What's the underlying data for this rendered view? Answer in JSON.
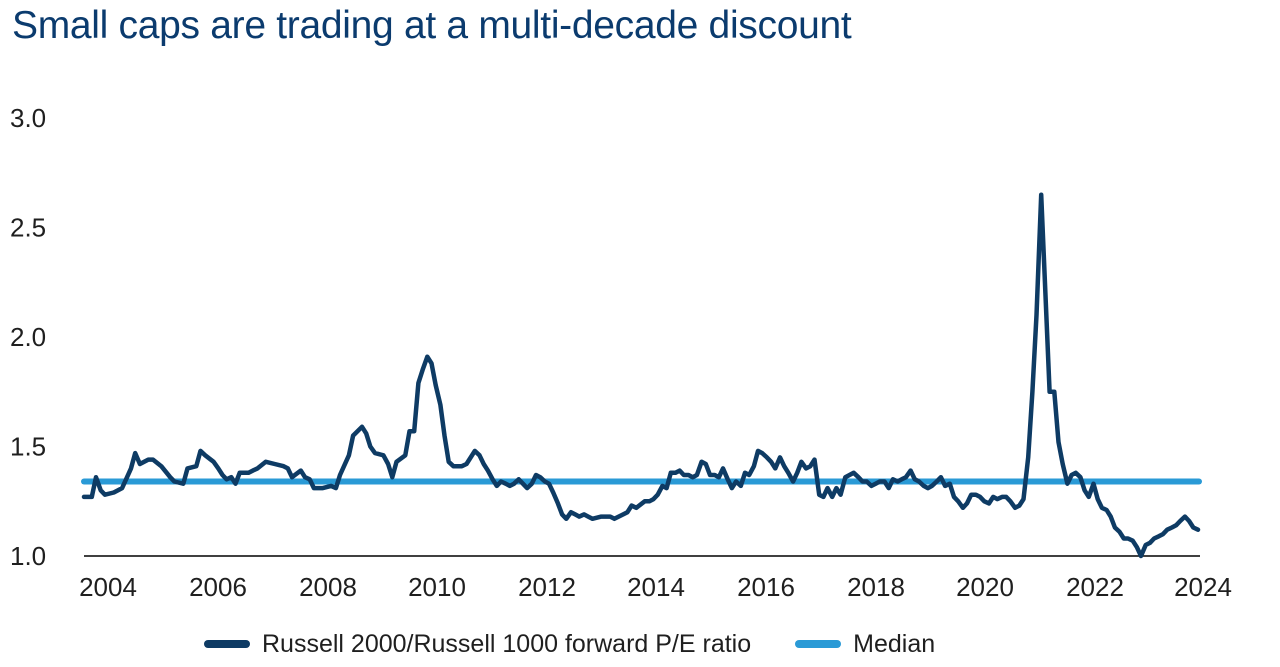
{
  "title": "Small caps are trading at a multi-decade discount",
  "chart_data": {
    "type": "line",
    "title": "Small caps are trading at a multi-decade discount",
    "xlabel": "",
    "ylabel": "",
    "xlim": [
      2003.6,
      2024.0
    ],
    "ylim": [
      1.0,
      3.0
    ],
    "x_ticks": [
      "2004",
      "2006",
      "2008",
      "2010",
      "2012",
      "2014",
      "2016",
      "2018",
      "2020",
      "2022",
      "2024"
    ],
    "y_ticks": [
      "1.0",
      "1.5",
      "2.0",
      "2.5",
      "3.0"
    ],
    "grid": false,
    "legend_position": "bottom",
    "series": [
      {
        "name": "Russell 2000/Russell 1000 forward P/E ratio",
        "color": "#0e3b64",
        "points": [
          [
            2003.6,
            1.27
          ],
          [
            2003.75,
            1.27
          ],
          [
            2003.83,
            1.36
          ],
          [
            2003.92,
            1.3
          ],
          [
            2004.0,
            1.28
          ],
          [
            2004.17,
            1.29
          ],
          [
            2004.33,
            1.31
          ],
          [
            2004.5,
            1.4
          ],
          [
            2004.58,
            1.47
          ],
          [
            2004.67,
            1.42
          ],
          [
            2004.83,
            1.44
          ],
          [
            2004.92,
            1.44
          ],
          [
            2005.08,
            1.41
          ],
          [
            2005.25,
            1.36
          ],
          [
            2005.33,
            1.34
          ],
          [
            2005.5,
            1.33
          ],
          [
            2005.58,
            1.4
          ],
          [
            2005.75,
            1.41
          ],
          [
            2005.83,
            1.48
          ],
          [
            2005.92,
            1.46
          ],
          [
            2006.08,
            1.43
          ],
          [
            2006.17,
            1.4
          ],
          [
            2006.25,
            1.37
          ],
          [
            2006.33,
            1.35
          ],
          [
            2006.42,
            1.36
          ],
          [
            2006.5,
            1.33
          ],
          [
            2006.58,
            1.38
          ],
          [
            2006.75,
            1.38
          ],
          [
            2006.83,
            1.39
          ],
          [
            2006.92,
            1.4
          ],
          [
            2007.08,
            1.43
          ],
          [
            2007.25,
            1.42
          ],
          [
            2007.42,
            1.41
          ],
          [
            2007.5,
            1.4
          ],
          [
            2007.58,
            1.36
          ],
          [
            2007.75,
            1.39
          ],
          [
            2007.83,
            1.36
          ],
          [
            2007.92,
            1.35
          ],
          [
            2008.0,
            1.31
          ],
          [
            2008.17,
            1.31
          ],
          [
            2008.33,
            1.32
          ],
          [
            2008.42,
            1.31
          ],
          [
            2008.5,
            1.37
          ],
          [
            2008.67,
            1.46
          ],
          [
            2008.75,
            1.55
          ],
          [
            2008.92,
            1.59
          ],
          [
            2009.0,
            1.56
          ],
          [
            2009.08,
            1.5
          ],
          [
            2009.17,
            1.47
          ],
          [
            2009.33,
            1.46
          ],
          [
            2009.42,
            1.42
          ],
          [
            2009.5,
            1.36
          ],
          [
            2009.58,
            1.43
          ],
          [
            2009.75,
            1.46
          ],
          [
            2009.83,
            1.57
          ],
          [
            2009.92,
            1.57
          ],
          [
            2010.0,
            1.79
          ],
          [
            2010.08,
            1.85
          ],
          [
            2010.17,
            1.91
          ],
          [
            2010.25,
            1.88
          ],
          [
            2010.33,
            1.78
          ],
          [
            2010.42,
            1.69
          ],
          [
            2010.5,
            1.55
          ],
          [
            2010.58,
            1.43
          ],
          [
            2010.67,
            1.41
          ],
          [
            2010.75,
            1.41
          ],
          [
            2010.83,
            1.41
          ],
          [
            2010.92,
            1.42
          ],
          [
            2011.08,
            1.48
          ],
          [
            2011.17,
            1.46
          ],
          [
            2011.25,
            1.42
          ],
          [
            2011.33,
            1.39
          ],
          [
            2011.42,
            1.35
          ],
          [
            2011.5,
            1.32
          ],
          [
            2011.58,
            1.34
          ],
          [
            2011.67,
            1.33
          ],
          [
            2011.75,
            1.32
          ],
          [
            2011.83,
            1.33
          ],
          [
            2011.92,
            1.35
          ],
          [
            2012.0,
            1.33
          ],
          [
            2012.08,
            1.31
          ],
          [
            2012.17,
            1.33
          ],
          [
            2012.25,
            1.37
          ],
          [
            2012.33,
            1.36
          ],
          [
            2012.42,
            1.34
          ],
          [
            2012.5,
            1.33
          ],
          [
            2012.58,
            1.29
          ],
          [
            2012.67,
            1.24
          ],
          [
            2012.75,
            1.19
          ],
          [
            2012.83,
            1.17
          ],
          [
            2012.92,
            1.2
          ],
          [
            2013.0,
            1.19
          ],
          [
            2013.08,
            1.18
          ],
          [
            2013.17,
            1.19
          ],
          [
            2013.25,
            1.18
          ],
          [
            2013.33,
            1.17
          ],
          [
            2013.5,
            1.18
          ],
          [
            2013.67,
            1.18
          ],
          [
            2013.75,
            1.17
          ],
          [
            2013.92,
            1.19
          ],
          [
            2014.0,
            1.2
          ],
          [
            2014.08,
            1.23
          ],
          [
            2014.17,
            1.22
          ],
          [
            2014.33,
            1.25
          ],
          [
            2014.42,
            1.25
          ],
          [
            2014.5,
            1.26
          ],
          [
            2014.58,
            1.28
          ],
          [
            2014.67,
            1.32
          ],
          [
            2014.75,
            1.31
          ],
          [
            2014.83,
            1.38
          ],
          [
            2014.92,
            1.38
          ],
          [
            2015.0,
            1.39
          ],
          [
            2015.08,
            1.37
          ],
          [
            2015.17,
            1.37
          ],
          [
            2015.25,
            1.36
          ],
          [
            2015.33,
            1.37
          ],
          [
            2015.42,
            1.43
          ],
          [
            2015.5,
            1.42
          ],
          [
            2015.58,
            1.37
          ],
          [
            2015.67,
            1.37
          ],
          [
            2015.75,
            1.36
          ],
          [
            2015.83,
            1.4
          ],
          [
            2015.92,
            1.35
          ],
          [
            2016.0,
            1.31
          ],
          [
            2016.08,
            1.34
          ],
          [
            2016.17,
            1.32
          ],
          [
            2016.25,
            1.38
          ],
          [
            2016.33,
            1.37
          ],
          [
            2016.42,
            1.41
          ],
          [
            2016.5,
            1.48
          ],
          [
            2016.58,
            1.47
          ],
          [
            2016.67,
            1.45
          ],
          [
            2016.75,
            1.43
          ],
          [
            2016.83,
            1.4
          ],
          [
            2016.92,
            1.45
          ],
          [
            2017.0,
            1.41
          ],
          [
            2017.08,
            1.38
          ],
          [
            2017.17,
            1.34
          ],
          [
            2017.25,
            1.38
          ],
          [
            2017.33,
            1.43
          ],
          [
            2017.42,
            1.4
          ],
          [
            2017.5,
            1.41
          ],
          [
            2017.58,
            1.44
          ],
          [
            2017.67,
            1.28
          ],
          [
            2017.75,
            1.27
          ],
          [
            2017.83,
            1.31
          ],
          [
            2017.92,
            1.27
          ],
          [
            2018.0,
            1.31
          ],
          [
            2018.08,
            1.28
          ],
          [
            2018.17,
            1.36
          ],
          [
            2018.33,
            1.38
          ],
          [
            2018.42,
            1.36
          ],
          [
            2018.5,
            1.34
          ],
          [
            2018.58,
            1.34
          ],
          [
            2018.67,
            1.32
          ],
          [
            2018.75,
            1.33
          ],
          [
            2018.83,
            1.34
          ],
          [
            2018.92,
            1.34
          ],
          [
            2019.0,
            1.31
          ],
          [
            2019.08,
            1.35
          ],
          [
            2019.17,
            1.34
          ],
          [
            2019.25,
            1.35
          ],
          [
            2019.33,
            1.36
          ],
          [
            2019.42,
            1.39
          ],
          [
            2019.5,
            1.35
          ],
          [
            2019.58,
            1.34
          ],
          [
            2019.67,
            1.32
          ],
          [
            2019.75,
            1.31
          ],
          [
            2019.83,
            1.32
          ],
          [
            2019.92,
            1.34
          ],
          [
            2020.0,
            1.36
          ],
          [
            2020.08,
            1.32
          ],
          [
            2020.17,
            1.33
          ],
          [
            2020.25,
            1.27
          ],
          [
            2020.33,
            1.25
          ],
          [
            2020.42,
            1.22
          ],
          [
            2020.5,
            1.24
          ],
          [
            2020.58,
            1.28
          ],
          [
            2020.67,
            1.28
          ],
          [
            2020.75,
            1.27
          ],
          [
            2020.83,
            1.25
          ],
          [
            2020.92,
            1.24
          ],
          [
            2021.0,
            1.27
          ],
          [
            2021.08,
            1.26
          ],
          [
            2021.17,
            1.27
          ],
          [
            2021.25,
            1.27
          ],
          [
            2021.33,
            1.25
          ],
          [
            2021.42,
            1.22
          ],
          [
            2021.5,
            1.23
          ],
          [
            2021.58,
            1.26
          ],
          [
            2021.67,
            1.45
          ],
          [
            2021.75,
            1.75
          ],
          [
            2021.83,
            2.1
          ],
          [
            2021.92,
            2.65
          ],
          [
            2022.0,
            2.2
          ],
          [
            2022.08,
            1.75
          ],
          [
            2022.17,
            1.75
          ],
          [
            2022.25,
            1.52
          ],
          [
            2022.33,
            1.42
          ],
          [
            2022.42,
            1.33
          ],
          [
            2022.5,
            1.37
          ],
          [
            2022.58,
            1.38
          ],
          [
            2022.67,
            1.36
          ],
          [
            2022.75,
            1.3
          ],
          [
            2022.83,
            1.27
          ],
          [
            2022.92,
            1.33
          ],
          [
            2023.0,
            1.26
          ],
          [
            2023.08,
            1.22
          ],
          [
            2023.17,
            1.21
          ],
          [
            2023.25,
            1.18
          ],
          [
            2023.33,
            1.13
          ],
          [
            2023.42,
            1.11
          ],
          [
            2023.5,
            1.08
          ],
          [
            2023.58,
            1.08
          ],
          [
            2023.67,
            1.07
          ],
          [
            2023.75,
            1.04
          ],
          [
            2023.83,
            1.0
          ],
          [
            2023.92,
            1.05
          ],
          [
            2024.0,
            1.06
          ],
          [
            2024.08,
            1.08
          ],
          [
            2024.17,
            1.09
          ],
          [
            2024.25,
            1.1
          ],
          [
            2024.33,
            1.12
          ],
          [
            2024.42,
            1.13
          ],
          [
            2024.5,
            1.14
          ],
          [
            2024.58,
            1.16
          ],
          [
            2024.67,
            1.18
          ],
          [
            2024.75,
            1.16
          ],
          [
            2024.83,
            1.13
          ],
          [
            2024.92,
            1.12
          ]
        ]
      },
      {
        "name": "Median",
        "color": "#2a9ad6",
        "points": [
          [
            2003.6,
            1.34
          ],
          [
            2024.0,
            1.34
          ]
        ]
      }
    ]
  },
  "legend": {
    "items": [
      {
        "label": "Russell 2000/Russell 1000 forward P/E ratio",
        "color": "#0e3b64"
      },
      {
        "label": "Median",
        "color": "#2a9ad6"
      }
    ]
  }
}
